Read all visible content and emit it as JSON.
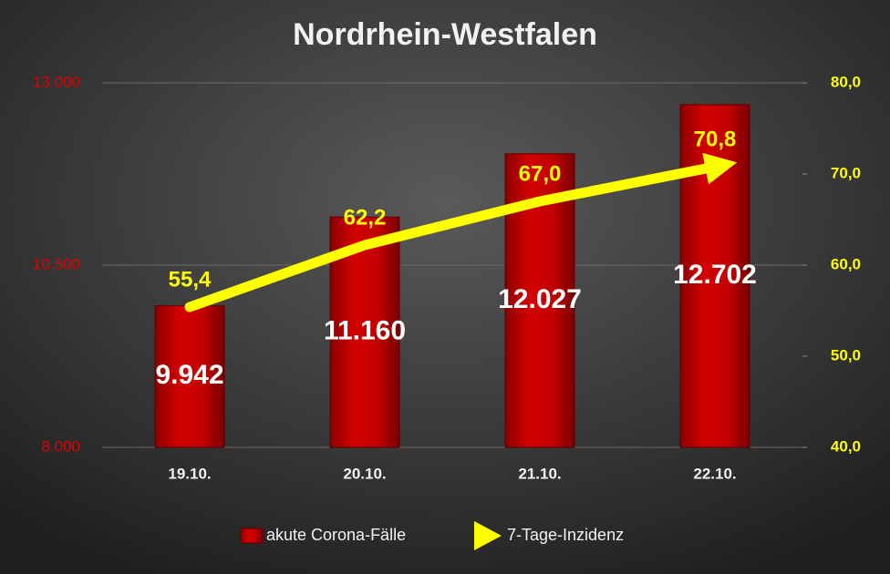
{
  "chart_data": {
    "type": "bar",
    "title": "Nordrhein-Westfalen",
    "categories": [
      "19.10.",
      "20.10.",
      "21.10.",
      "22.10."
    ],
    "series": [
      {
        "name": "akute Corona-Fälle",
        "type": "bar",
        "color": "#c00000",
        "values": [
          9942,
          11160,
          12027,
          12702
        ],
        "value_labels": [
          "9.942",
          "11.160",
          "12.027",
          "12.702"
        ]
      },
      {
        "name": "7-Tage-Inzidenz",
        "type": "line",
        "axis": "y2",
        "color": "#ffff00",
        "values": [
          55.4,
          62.2,
          67.0,
          70.8
        ],
        "value_labels": [
          "55,4",
          "62,2",
          "67,0",
          "70,8"
        ]
      }
    ],
    "ylim": [
      8000,
      13000
    ],
    "yticks": [
      {
        "value": 8000,
        "label": "8.000"
      },
      {
        "value": 10500,
        "label": "10.500"
      },
      {
        "value": 13000,
        "label": "13.000"
      }
    ],
    "y2lim": [
      40,
      80
    ],
    "y2ticks": [
      {
        "value": 40,
        "label": "40,0"
      },
      {
        "value": 50,
        "label": "50,0"
      },
      {
        "value": 60,
        "label": "60,0"
      },
      {
        "value": 70,
        "label": "70,0"
      },
      {
        "value": 80,
        "label": "80,0"
      }
    ],
    "grid": true,
    "legend": "bottom"
  }
}
